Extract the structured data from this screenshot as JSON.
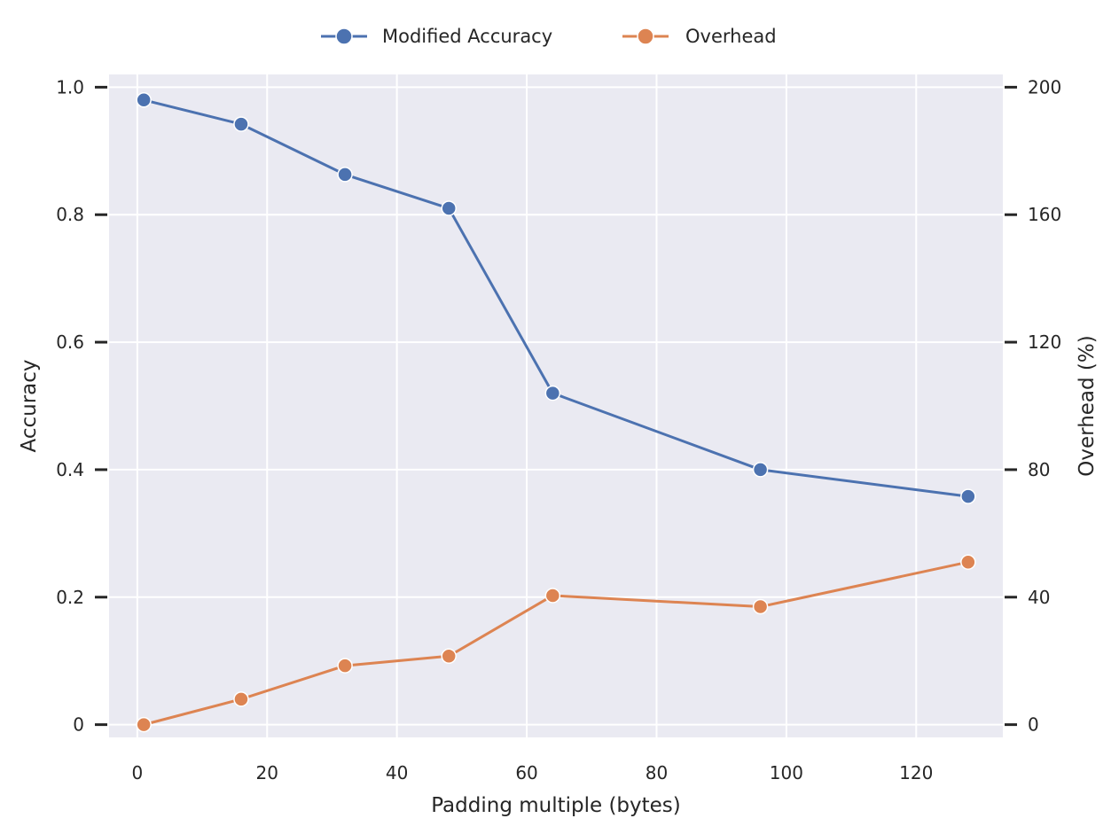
{
  "chart_data": {
    "type": "line",
    "xlabel": "Padding multiple (bytes)",
    "ylabel_left": "Accuracy",
    "ylabel_right": "Overhead (%)",
    "x": [
      1,
      16,
      32,
      48,
      64,
      96,
      128
    ],
    "xlim": [
      -4.35,
      133.35
    ],
    "xticks": [
      0,
      20,
      40,
      60,
      80,
      100,
      120
    ],
    "xtick_labels": [
      "0",
      "20",
      "40",
      "60",
      "80",
      "100",
      "120"
    ],
    "ylim_left": [
      -0.02,
      1.02
    ],
    "yticks_left": [
      0,
      0.2,
      0.4,
      0.6,
      0.8,
      1.0
    ],
    "ytick_labels_left": [
      "0",
      "0.2",
      "0.4",
      "0.6",
      "0.8",
      "1.0"
    ],
    "ylim_right": [
      -4,
      204
    ],
    "yticks_right": [
      0,
      40,
      80,
      120,
      160,
      200
    ],
    "ytick_labels_right": [
      "0",
      "40",
      "80",
      "120",
      "160",
      "200"
    ],
    "grid": true,
    "legend_position": "top-center",
    "series": [
      {
        "name": "Modified Accuracy",
        "axis": "left",
        "color": "#4c72b0",
        "values": [
          0.98,
          0.942,
          0.863,
          0.81,
          0.52,
          0.4,
          0.358
        ]
      },
      {
        "name": "Overhead",
        "axis": "right",
        "color": "#dd8452",
        "values": [
          0,
          8,
          18.5,
          21.5,
          40.5,
          37,
          51
        ]
      }
    ]
  }
}
